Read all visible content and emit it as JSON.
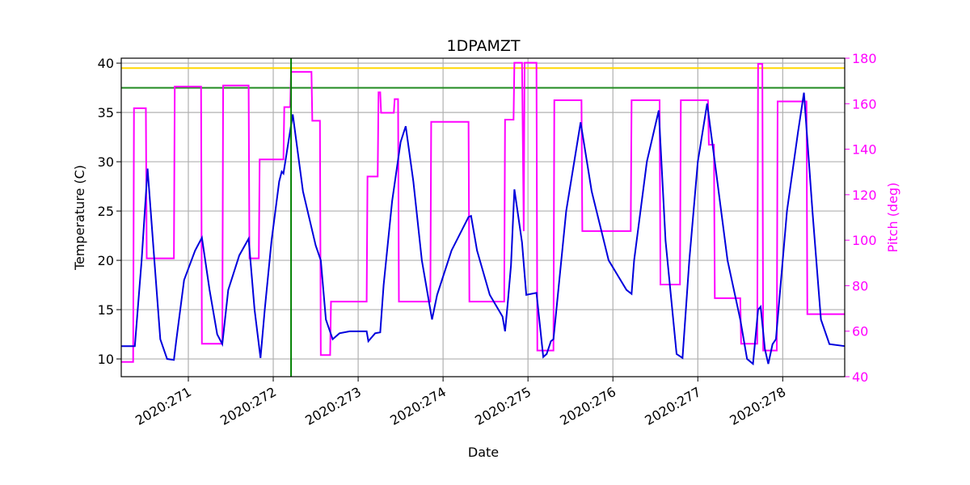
{
  "chart_data": {
    "type": "line",
    "title": "1DPAMZT",
    "xlabel": "Date",
    "ylabel": "Temperature (C)",
    "y2label": "Pitch (deg)",
    "xlim": [
      270.21,
      278.73
    ],
    "xticks": [
      {
        "value": 271,
        "label": "2020:271"
      },
      {
        "value": 272,
        "label": "2020:272"
      },
      {
        "value": 273,
        "label": "2020:273"
      },
      {
        "value": 274,
        "label": "2020:274"
      },
      {
        "value": 275,
        "label": "2020:275"
      },
      {
        "value": 276,
        "label": "2020:276"
      },
      {
        "value": 277,
        "label": "2020:277"
      },
      {
        "value": 278,
        "label": "2020:278"
      }
    ],
    "ylim": [
      8.2,
      40.5
    ],
    "yticks": [
      10,
      15,
      20,
      25,
      30,
      35,
      40
    ],
    "y2lim": [
      40,
      180
    ],
    "y2ticks": [
      40,
      60,
      80,
      100,
      120,
      140,
      160,
      180
    ],
    "y2color": "#ff00ff",
    "grid": true,
    "hlines": [
      {
        "value": 39.5,
        "color": "#ffd700"
      },
      {
        "value": 37.5,
        "color": "#228b22"
      }
    ],
    "vlines": [
      {
        "value": 272.21,
        "color": "#008000"
      }
    ],
    "series": [
      {
        "color": "#ff00ff",
        "axis": "y2",
        "x": [
          270.21,
          270.35,
          270.36,
          270.5,
          270.51,
          270.83,
          270.84,
          271.15,
          271.16,
          271.4,
          271.41,
          271.71,
          271.72,
          271.83,
          271.84,
          272.12,
          272.13,
          272.2,
          272.21,
          272.45,
          272.46,
          272.55,
          272.56,
          272.67,
          272.68,
          273.1,
          273.11,
          273.23,
          273.24,
          273.26,
          273.27,
          273.42,
          273.43,
          273.47,
          273.48,
          273.85,
          273.86,
          274.3,
          274.31,
          274.72,
          274.73,
          274.83,
          274.84,
          274.93,
          274.95,
          274.96,
          275.1,
          275.11,
          275.3,
          275.31,
          275.63,
          275.64,
          276.21,
          276.22,
          276.55,
          276.56,
          276.79,
          276.8,
          277.12,
          277.13,
          277.19,
          277.2,
          277.5,
          277.51,
          277.7,
          277.71,
          277.76,
          277.77,
          277.93,
          277.94,
          278.28,
          278.29,
          278.73
        ],
        "values": [
          46.5,
          46.5,
          158,
          158,
          92,
          92,
          167.5,
          167.5,
          54.5,
          54.5,
          168,
          168,
          92,
          92,
          135.5,
          135.5,
          158.5,
          158.5,
          174,
          174,
          152.5,
          152.5,
          49.5,
          49.5,
          73,
          73,
          128,
          128,
          165,
          165,
          156,
          156,
          162,
          162,
          73,
          73,
          152,
          152,
          73,
          73,
          153,
          153,
          178,
          178,
          104,
          178,
          178,
          51.5,
          51.5,
          161.5,
          161.5,
          104,
          104,
          161.5,
          161.5,
          80.5,
          80.5,
          161.5,
          161.5,
          142,
          142,
          74.5,
          74.5,
          54.5,
          54.5,
          177.5,
          177.5,
          51.5,
          51.5,
          161,
          161,
          67.5,
          67.5
        ]
      },
      {
        "color": "#0000dd",
        "x": [
          270.21,
          270.37,
          270.45,
          270.52,
          270.6,
          270.67,
          270.75,
          270.83,
          270.86,
          270.95,
          271.08,
          271.16,
          271.25,
          271.34,
          271.4,
          271.47,
          271.6,
          271.71,
          271.78,
          271.85,
          271.9,
          271.98,
          272.07,
          272.1,
          272.12,
          272.23,
          272.35,
          272.5,
          272.56,
          272.62,
          272.7,
          272.78,
          272.9,
          273.1,
          273.12,
          273.2,
          273.26,
          273.3,
          273.4,
          273.5,
          273.56,
          273.65,
          273.75,
          273.87,
          273.93,
          274.1,
          274.3,
          274.33,
          274.4,
          274.55,
          274.7,
          274.73,
          274.76,
          274.8,
          274.84,
          274.93,
          274.98,
          275.1,
          275.18,
          275.22,
          275.27,
          275.3,
          275.45,
          275.62,
          275.75,
          275.95,
          276.16,
          276.22,
          276.25,
          276.4,
          276.54,
          276.62,
          276.75,
          276.82,
          276.9,
          277.0,
          277.11,
          277.2,
          277.35,
          277.5,
          277.58,
          277.65,
          277.71,
          277.74,
          277.79,
          277.83,
          277.88,
          277.92,
          278.05,
          278.18,
          278.25,
          278.35,
          278.45,
          278.55,
          278.73
        ],
        "values": [
          11.3,
          11.3,
          20,
          29.3,
          20,
          12,
          10,
          9.9,
          12,
          18,
          21,
          22.3,
          17,
          12.5,
          11.5,
          17,
          20.5,
          22.2,
          15,
          10.1,
          15,
          22,
          28,
          29,
          28.8,
          34.8,
          27,
          21.5,
          20,
          14,
          12,
          12.6,
          12.8,
          12.8,
          11.8,
          12.6,
          12.7,
          17.5,
          26,
          32,
          33.6,
          28,
          20,
          14,
          16.5,
          21,
          24.4,
          24.5,
          21,
          16.5,
          14.3,
          12.8,
          15.5,
          19.5,
          27.2,
          21.8,
          16.5,
          16.7,
          10.2,
          10.5,
          11.8,
          12,
          25,
          34,
          27,
          20,
          17,
          16.6,
          20,
          30,
          35.2,
          22,
          10.5,
          10.1,
          20,
          30,
          35.9,
          30,
          20,
          14,
          10,
          9.5,
          15,
          15.3,
          11,
          9.5,
          11.5,
          12,
          25,
          33,
          37,
          25,
          14,
          11.5,
          11.3
        ]
      }
    ]
  }
}
